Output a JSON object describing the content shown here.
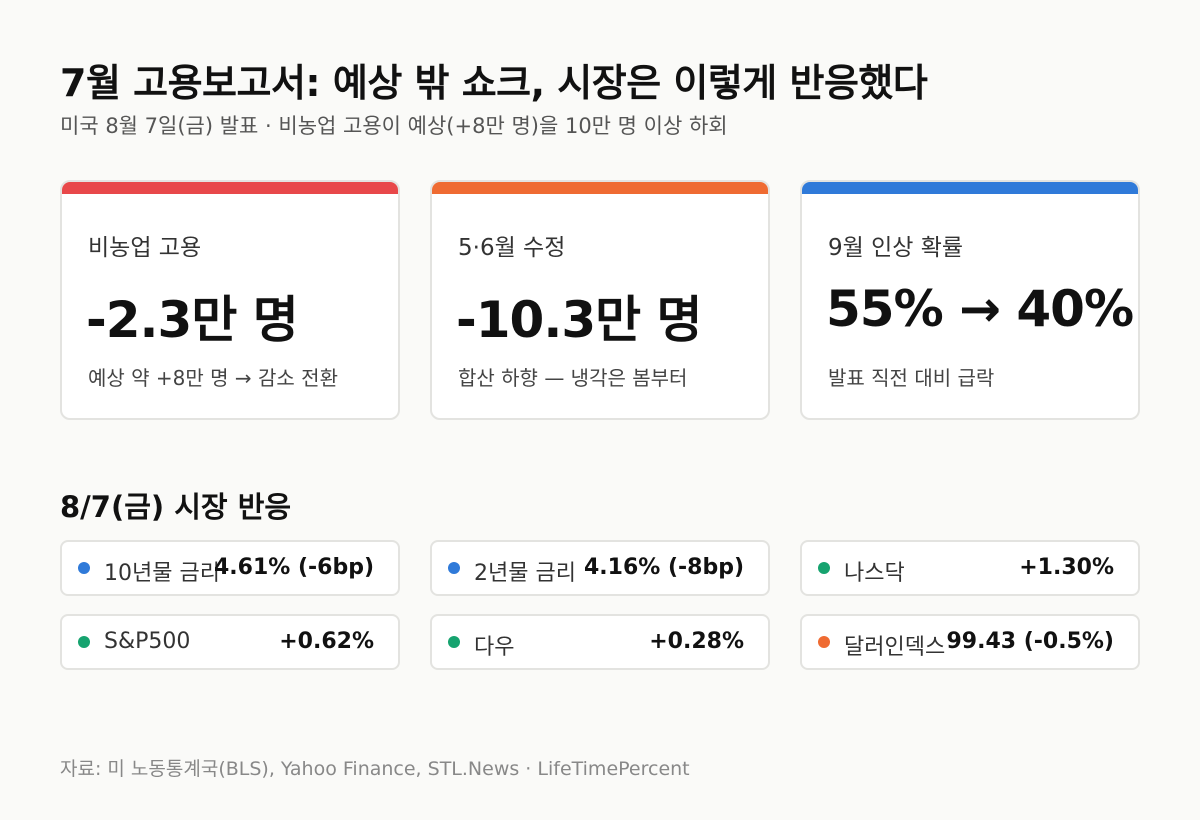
{
  "title": "7월 고용보고서: 예상 밖 쇼크, 시장은 이렇게 반응했다",
  "subtitle": "미국 8월 7일(금) 발표  ·  비농업 고용이 예상(+8만 명)을 10만 명 이상 하회",
  "cards": [
    {
      "label": "비농업 고용",
      "value": "-2.3만 명",
      "note": "예상 약 +8만 명 → 감소 전환",
      "accent": "#e8484a"
    },
    {
      "label": "5·6월 수정",
      "value": "-10.3만 명",
      "note": "합산 하향 — 냉각은 봄부터",
      "accent": "#ef6b32"
    },
    {
      "label": "9월 인상 확률",
      "value": "55% → 40%",
      "note": "발표 직전 대비 급락",
      "accent": "#2f7ad9"
    }
  ],
  "market": {
    "title": "8/7(금) 시장 반응",
    "items": [
      {
        "name": "10년물 금리",
        "value": "4.61% (-6bp)",
        "dot": "#2f7ad9"
      },
      {
        "name": "2년물 금리",
        "value": "4.16% (-8bp)",
        "dot": "#2f7ad9"
      },
      {
        "name": "나스닥",
        "value": "+1.30%",
        "dot": "#16a36f"
      },
      {
        "name": "S&P500",
        "value": "+0.62%",
        "dot": "#16a36f"
      },
      {
        "name": "다우",
        "value": "+0.28%",
        "dot": "#16a36f"
      },
      {
        "name": "달러인덱스",
        "value": "99.43 (-0.5%)",
        "dot": "#ef6b32"
      }
    ]
  },
  "footer": "자료: 미 노동통계국(BLS), Yahoo Finance, STL.News  ·  LifeTimePercent"
}
